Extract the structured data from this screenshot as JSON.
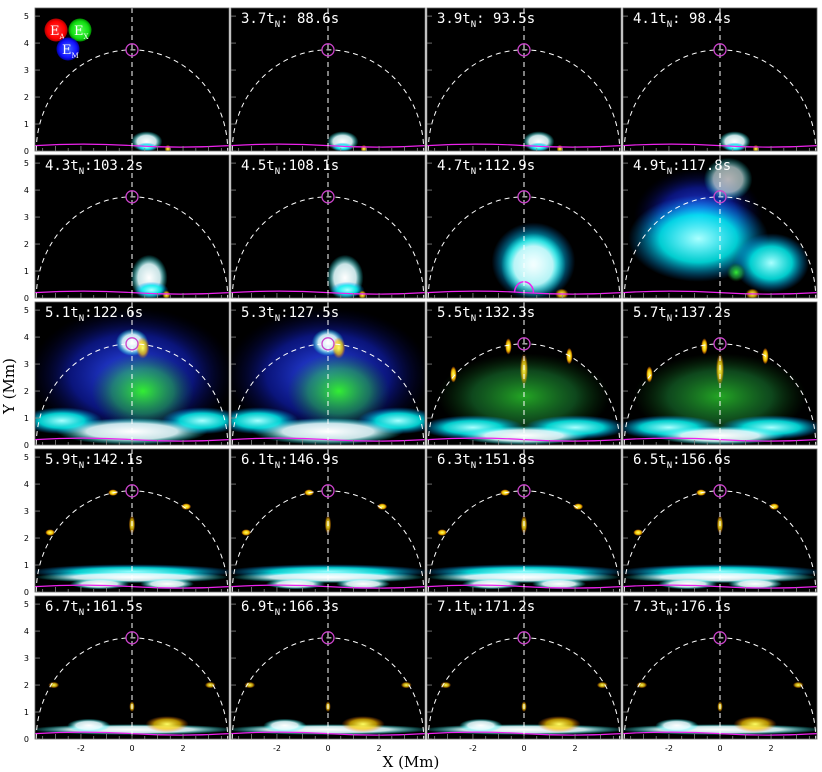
{
  "figure": {
    "ylabel": "Y  (Mm)",
    "xlabel": "X  (Mm)",
    "xticks": [
      "-2",
      "0",
      "2",
      "-2",
      "0",
      "2",
      "-2",
      "0",
      "2",
      "-2",
      "0",
      "2"
    ],
    "yticks": [
      "0",
      "1",
      "2",
      "3",
      "4",
      "5"
    ],
    "legend": {
      "red": {
        "letter": "E",
        "sub": "A",
        "color": "#ff1a1a"
      },
      "green": {
        "letter": "E",
        "sub": "X",
        "color": "#22dd22"
      },
      "blue": {
        "letter": "E",
        "sub": "M",
        "color": "#1a1aff"
      }
    },
    "colors": {
      "arc": "#ffffff",
      "marker": "#cc44cc",
      "magenta_line": "#ee22ee"
    }
  },
  "panels": [
    {
      "label": "",
      "stage": 0
    },
    {
      "label": "3.7t_N: 88.6s",
      "stage": 0
    },
    {
      "label": "3.9t_N: 93.5s",
      "stage": 0
    },
    {
      "label": "4.1t_N: 98.4s",
      "stage": 0
    },
    {
      "label": "4.3t_N:103.2s",
      "stage": 1
    },
    {
      "label": "4.5t_N:108.1s",
      "stage": 1
    },
    {
      "label": "4.7t_N:112.9s",
      "stage": 2
    },
    {
      "label": "4.9t_N:117.8s",
      "stage": 3
    },
    {
      "label": "5.1t_N:122.6s",
      "stage": 4
    },
    {
      "label": "5.3t_N:127.5s",
      "stage": 4
    },
    {
      "label": "5.5t_N:132.3s",
      "stage": 5
    },
    {
      "label": "5.7t_N:137.2s",
      "stage": 5
    },
    {
      "label": "5.9t_N:142.1s",
      "stage": 6
    },
    {
      "label": "6.1t_N:146.9s",
      "stage": 6
    },
    {
      "label": "6.3t_N:151.8s",
      "stage": 6
    },
    {
      "label": "6.5t_N:156.6s",
      "stage": 6
    },
    {
      "label": "6.7t_N:161.5s",
      "stage": 7
    },
    {
      "label": "6.9t_N:166.3s",
      "stage": 7
    },
    {
      "label": "7.1t_N:171.2s",
      "stage": 7
    },
    {
      "label": "7.3t_N:176.1s",
      "stage": 7
    }
  ]
}
